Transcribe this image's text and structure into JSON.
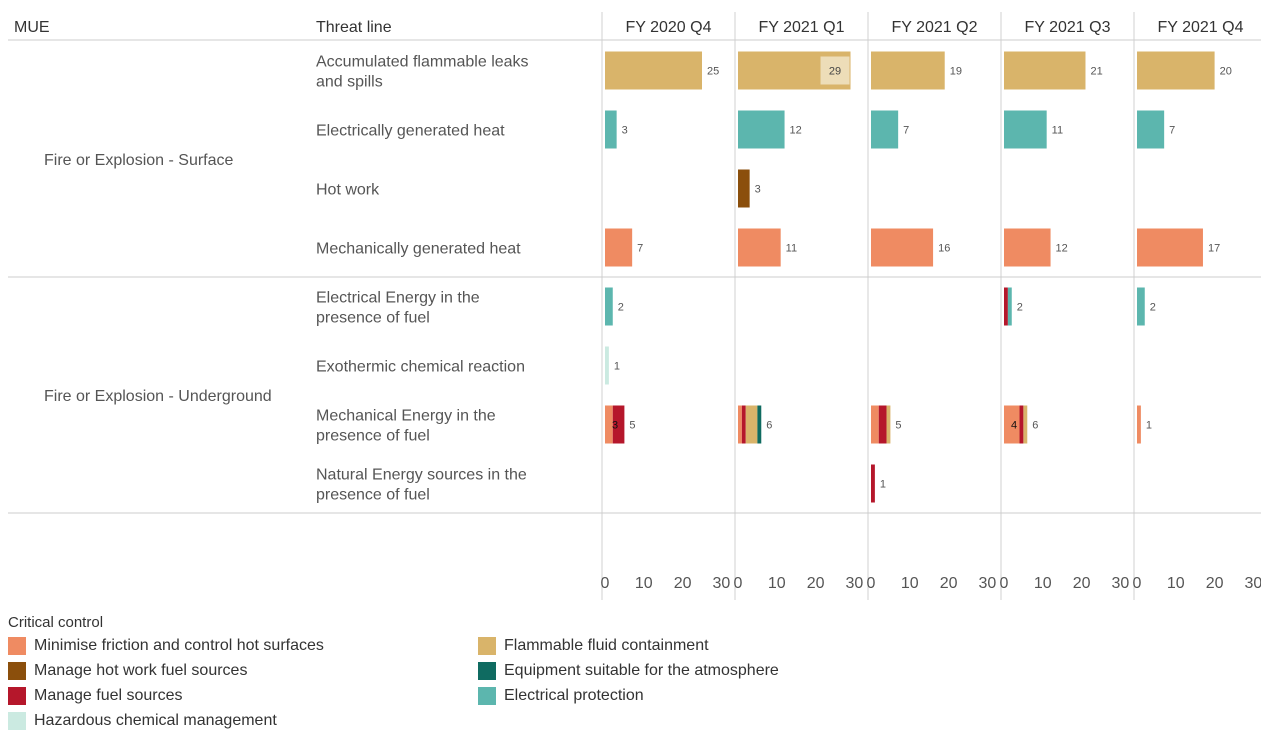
{
  "header": {
    "mue": "MUE",
    "threat_line": "Threat line"
  },
  "periods": [
    "FY 2020 Q4",
    "FY 2021 Q1",
    "FY 2021 Q2",
    "FY 2021 Q3",
    "FY 2021 Q4"
  ],
  "axis_ticks": [
    "0",
    "10",
    "20",
    "30"
  ],
  "legend": {
    "title": "Critical control",
    "items": [
      {
        "label": "Minimise friction and control hot surfaces",
        "color": "#EF8B62"
      },
      {
        "label": "Manage hot work fuel sources",
        "color": "#8B4F0C"
      },
      {
        "label": "Manage fuel sources",
        "color": "#B5172B"
      },
      {
        "label": "Hazardous chemical management",
        "color": "#CBEAE1"
      },
      {
        "label": "Flammable fluid containment",
        "color": "#D9B46A"
      },
      {
        "label": "Equipment suitable for the atmosphere",
        "color": "#0F6B61"
      },
      {
        "label": "Electrical protection",
        "color": "#5CB6AE"
      }
    ]
  },
  "chart_data": {
    "type": "bar",
    "orientation": "horizontal",
    "stacked": true,
    "xlim": [
      0,
      30
    ],
    "xticks": [
      0,
      10,
      20,
      30
    ],
    "columns": [
      "FY 2020 Q4",
      "FY 2021 Q1",
      "FY 2021 Q2",
      "FY 2021 Q3",
      "FY 2021 Q4"
    ],
    "row_header": [
      "MUE",
      "Threat line"
    ],
    "groups": [
      {
        "mue": "Fire or Explosion - Surface",
        "rows": [
          {
            "threat_line": "Accumulated flammable leaks and spills",
            "cells": [
              {
                "total": "25",
                "segments": [
                  {
                    "control": "Flammable fluid containment",
                    "value": 25
                  }
                ]
              },
              {
                "total": "",
                "highlight": "29",
                "segments": [
                  {
                    "control": "Flammable fluid containment",
                    "value": 29
                  }
                ]
              },
              {
                "total": "19",
                "segments": [
                  {
                    "control": "Flammable fluid containment",
                    "value": 19
                  }
                ]
              },
              {
                "total": "21",
                "segments": [
                  {
                    "control": "Flammable fluid containment",
                    "value": 21
                  }
                ]
              },
              {
                "total": "20",
                "segments": [
                  {
                    "control": "Flammable fluid containment",
                    "value": 20
                  }
                ]
              }
            ]
          },
          {
            "threat_line": "Electrically generated heat",
            "cells": [
              {
                "total": "3",
                "segments": [
                  {
                    "control": "Electrical protection",
                    "value": 3
                  }
                ]
              },
              {
                "total": "12",
                "segments": [
                  {
                    "control": "Electrical protection",
                    "value": 12
                  }
                ]
              },
              {
                "total": "7",
                "segments": [
                  {
                    "control": "Electrical protection",
                    "value": 7
                  }
                ]
              },
              {
                "total": "11",
                "segments": [
                  {
                    "control": "Electrical protection",
                    "value": 11
                  }
                ]
              },
              {
                "total": "7",
                "segments": [
                  {
                    "control": "Electrical protection",
                    "value": 7
                  }
                ]
              }
            ]
          },
          {
            "threat_line": "Hot work",
            "cells": [
              {
                "total": "",
                "segments": []
              },
              {
                "total": "3",
                "segments": [
                  {
                    "control": "Manage hot work fuel sources",
                    "value": 3
                  }
                ]
              },
              {
                "total": "",
                "segments": []
              },
              {
                "total": "",
                "segments": []
              },
              {
                "total": "",
                "segments": []
              }
            ]
          },
          {
            "threat_line": "Mechanically generated heat",
            "cells": [
              {
                "total": "7",
                "segments": [
                  {
                    "control": "Minimise friction and control hot surfaces",
                    "value": 7
                  }
                ]
              },
              {
                "total": "11",
                "segments": [
                  {
                    "control": "Minimise friction and control hot surfaces",
                    "value": 11
                  }
                ]
              },
              {
                "total": "16",
                "segments": [
                  {
                    "control": "Minimise friction and control hot surfaces",
                    "value": 16
                  }
                ]
              },
              {
                "total": "12",
                "segments": [
                  {
                    "control": "Minimise friction and control hot surfaces",
                    "value": 12
                  }
                ]
              },
              {
                "total": "17",
                "segments": [
                  {
                    "control": "Minimise friction and control hot surfaces",
                    "value": 17
                  }
                ]
              }
            ]
          }
        ]
      },
      {
        "mue": "Fire or Explosion - Underground",
        "rows": [
          {
            "threat_line": "Electrical Energy in the presence of fuel",
            "cells": [
              {
                "total": "2",
                "segments": [
                  {
                    "control": "Electrical protection",
                    "value": 2
                  }
                ]
              },
              {
                "total": "",
                "segments": []
              },
              {
                "total": "",
                "segments": []
              },
              {
                "total": "2",
                "segments": [
                  {
                    "control": "Manage fuel sources",
                    "value": 1
                  },
                  {
                    "control": "Electrical protection",
                    "value": 1
                  }
                ]
              },
              {
                "total": "2",
                "segments": [
                  {
                    "control": "Electrical protection",
                    "value": 2
                  }
                ]
              }
            ]
          },
          {
            "threat_line": "Exothermic chemical reaction",
            "cells": [
              {
                "total": "1",
                "segments": [
                  {
                    "control": "Hazardous chemical management",
                    "value": 1
                  }
                ]
              },
              {
                "total": "",
                "segments": []
              },
              {
                "total": "",
                "segments": []
              },
              {
                "total": "",
                "segments": []
              },
              {
                "total": "",
                "segments": []
              }
            ]
          },
          {
            "threat_line": "Mechanical Energy in the presence of fuel",
            "cells": [
              {
                "total": "5",
                "inner": "3",
                "segments": [
                  {
                    "control": "Minimise friction and control hot surfaces",
                    "value": 2
                  },
                  {
                    "control": "Manage fuel sources",
                    "value": 3
                  }
                ]
              },
              {
                "total": "6",
                "segments": [
                  {
                    "control": "Minimise friction and control hot surfaces",
                    "value": 1
                  },
                  {
                    "control": "Manage fuel sources",
                    "value": 1
                  },
                  {
                    "control": "Flammable fluid containment",
                    "value": 3
                  },
                  {
                    "control": "Equipment suitable for the atmosphere",
                    "value": 1
                  }
                ]
              },
              {
                "total": "5",
                "segments": [
                  {
                    "control": "Minimise friction and control hot surfaces",
                    "value": 2
                  },
                  {
                    "control": "Manage fuel sources",
                    "value": 2
                  },
                  {
                    "control": "Flammable fluid containment",
                    "value": 1
                  }
                ]
              },
              {
                "total": "6",
                "inner": "4",
                "segments": [
                  {
                    "control": "Minimise friction and control hot surfaces",
                    "value": 4
                  },
                  {
                    "control": "Manage fuel sources",
                    "value": 1
                  },
                  {
                    "control": "Flammable fluid containment",
                    "value": 1
                  }
                ]
              },
              {
                "total": "1",
                "segments": [
                  {
                    "control": "Minimise friction and control hot surfaces",
                    "value": 1
                  }
                ]
              }
            ]
          },
          {
            "threat_line": "Natural Energy sources in the presence of fuel",
            "cells": [
              {
                "total": "",
                "segments": []
              },
              {
                "total": "",
                "segments": []
              },
              {
                "total": "1",
                "segments": [
                  {
                    "control": "Manage fuel sources",
                    "value": 1
                  }
                ]
              },
              {
                "total": "",
                "segments": []
              },
              {
                "total": "",
                "segments": []
              }
            ]
          }
        ]
      }
    ]
  }
}
